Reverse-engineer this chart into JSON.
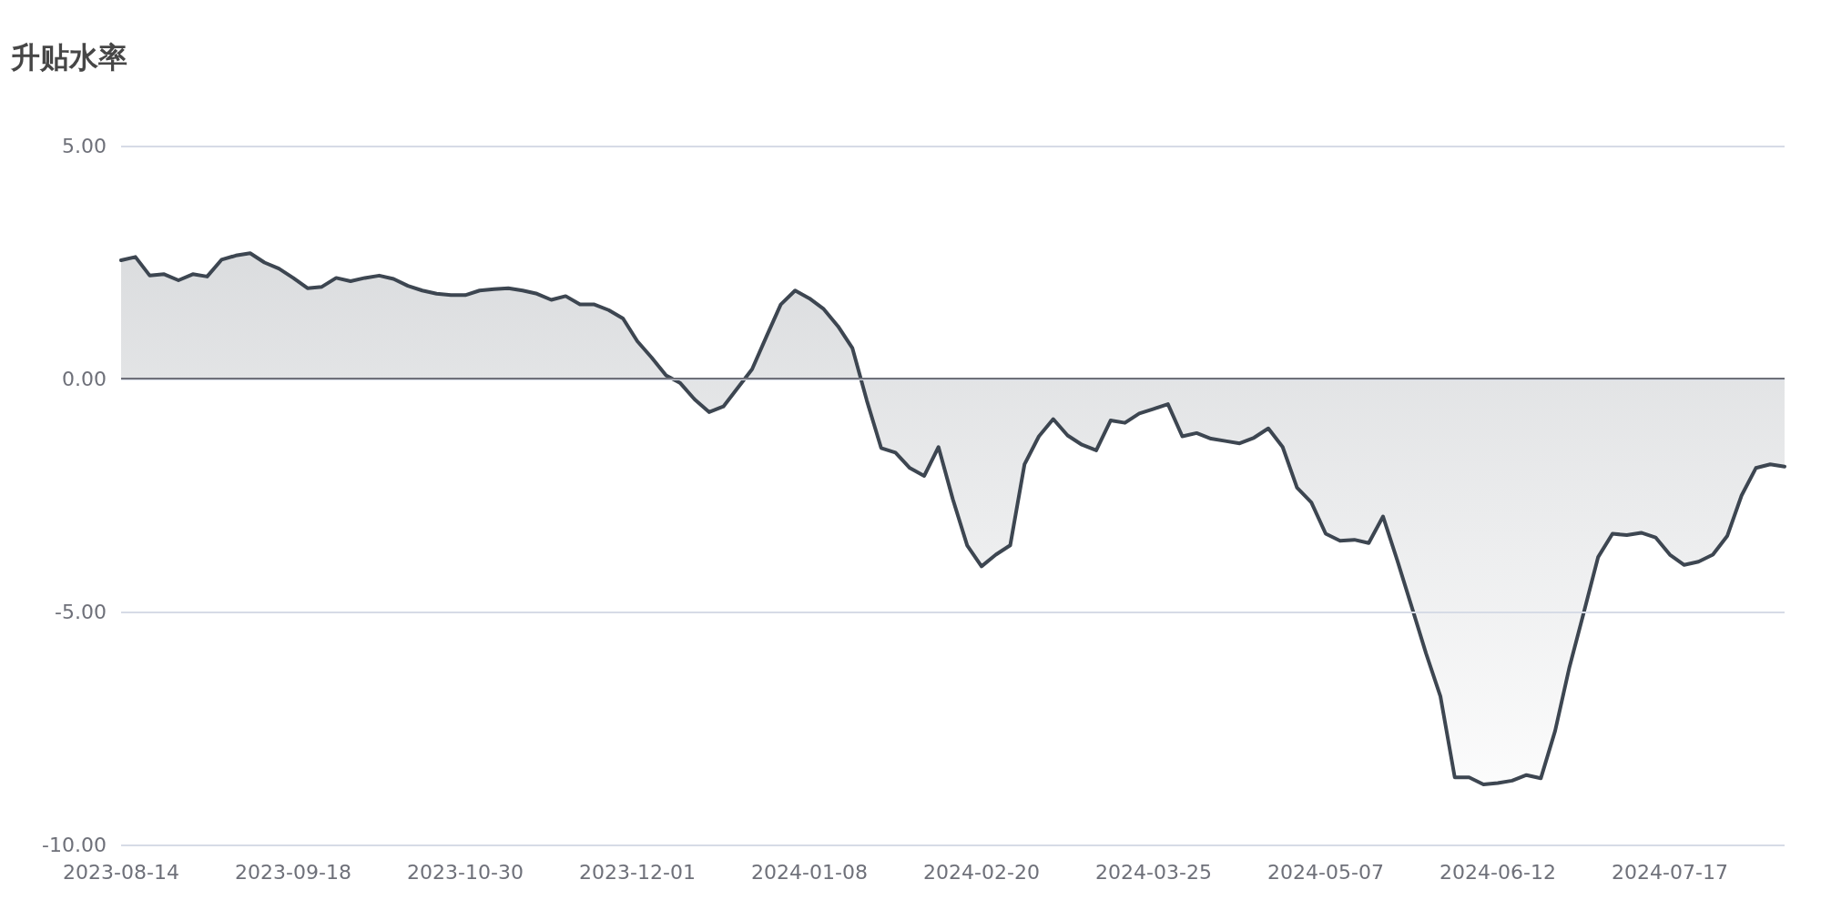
{
  "chart_data": {
    "type": "area",
    "title": "升贴水率",
    "categories": [
      "2023-08-14",
      null,
      null,
      null,
      null,
      null,
      null,
      null,
      null,
      null,
      null,
      null,
      "2023-09-18",
      null,
      null,
      null,
      null,
      null,
      null,
      null,
      null,
      null,
      null,
      null,
      "2023-10-30",
      null,
      null,
      null,
      null,
      null,
      null,
      null,
      null,
      null,
      null,
      null,
      "2023-12-01",
      null,
      null,
      null,
      null,
      null,
      null,
      null,
      null,
      null,
      null,
      null,
      "2024-01-08",
      null,
      null,
      null,
      null,
      null,
      null,
      null,
      null,
      null,
      null,
      null,
      "2024-02-20",
      null,
      null,
      null,
      null,
      null,
      null,
      null,
      null,
      null,
      null,
      null,
      "2024-03-25",
      null,
      null,
      null,
      null,
      null,
      null,
      null,
      null,
      null,
      null,
      null,
      "2024-05-07",
      null,
      null,
      null,
      null,
      null,
      null,
      null,
      null,
      null,
      null,
      null,
      "2024-06-12",
      null,
      null,
      null,
      null,
      null,
      null,
      null,
      null,
      null,
      null,
      null,
      "2024-07-17",
      null,
      null,
      null,
      null,
      null,
      null,
      null,
      null
    ],
    "series": [
      {
        "color": "#3d4651",
        "values": [
          2.54,
          2.61,
          2.21,
          2.24,
          2.11,
          2.24,
          2.19,
          2.55,
          2.64,
          2.69,
          2.49,
          2.36,
          2.16,
          1.94,
          1.97,
          2.16,
          2.09,
          2.16,
          2.21,
          2.14,
          1.99,
          1.89,
          1.82,
          1.79,
          1.79,
          1.89,
          1.92,
          1.94,
          1.89,
          1.82,
          1.69,
          1.77,
          1.59,
          1.59,
          1.47,
          1.29,
          0.8,
          0.45,
          0.07,
          -0.1,
          -0.45,
          -0.72,
          -0.6,
          -0.2,
          0.2,
          0.9,
          1.59,
          1.89,
          1.72,
          1.49,
          1.12,
          0.65,
          -0.47,
          -1.49,
          -1.59,
          -1.92,
          -2.09,
          -1.47,
          -2.59,
          -3.58,
          -4.03,
          -3.78,
          -3.58,
          -1.84,
          -1.24,
          -0.87,
          -1.22,
          -1.42,
          -1.54,
          -0.9,
          -0.95,
          -0.75,
          -0.65,
          -0.55,
          -1.24,
          -1.17,
          -1.29,
          -1.34,
          -1.39,
          -1.27,
          -1.07,
          -1.47,
          -2.34,
          -2.66,
          -3.33,
          -3.48,
          -3.46,
          -3.53,
          -2.96,
          -3.91,
          -4.9,
          -5.9,
          -6.82,
          -8.56,
          -8.56,
          -8.71,
          -8.68,
          -8.63,
          -8.51,
          -8.58,
          -7.56,
          -6.19,
          -5.02,
          -3.83,
          -3.33,
          -3.36,
          -3.31,
          -3.41,
          -3.78,
          -4.0,
          -3.93,
          -3.78,
          -3.38,
          -2.51,
          -1.92,
          -1.84,
          -1.89
        ]
      }
    ],
    "ylim": [
      -10,
      5
    ],
    "yticks": [
      {
        "value": 5,
        "label": "5.00"
      },
      {
        "value": 0,
        "label": "0.00"
      },
      {
        "value": -5,
        "label": "-5.00"
      },
      {
        "value": -10,
        "label": "-10.00"
      }
    ],
    "grid": "y"
  }
}
